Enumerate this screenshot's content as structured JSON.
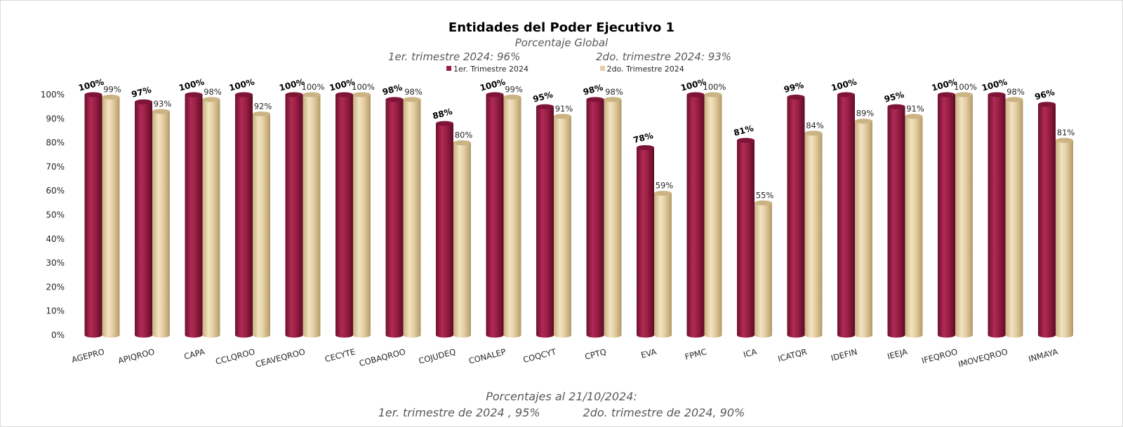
{
  "title": "Entidades del Poder Ejecutivo 1",
  "subtitle": "Porcentaje Global",
  "quarter_summary": {
    "q1": "1er. trimestre 2024: 96%",
    "q2": "2do. trimestre 2024: 93%"
  },
  "footer": {
    "line1": "Porcentajes al 21/10/2024:",
    "line2": "1er. trimestre de 2024 , 95%            2do. trimestre de 2024, 90%"
  },
  "colors": {
    "series1": "#9b1f45",
    "series2": "#e4cfa3"
  },
  "chart_data": {
    "type": "bar",
    "title": "Entidades del Poder Ejecutivo 1",
    "subtitle": "Porcentaje Global",
    "ylim": [
      0,
      100
    ],
    "yticks": [
      "0%",
      "10%",
      "20%",
      "30%",
      "40%",
      "50%",
      "60%",
      "70%",
      "80%",
      "90%",
      "100%"
    ],
    "grid": false,
    "legend_position": "top-center",
    "categories": [
      "AGEPRO",
      "APIQROO",
      "CAPA",
      "CCLQROO",
      "CEAVEQROO",
      "CECYTE",
      "COBAQROO",
      "COJUDEQ",
      "CONALEP",
      "COQCYT",
      "CPTQ",
      "EVA",
      "FPMC",
      "ICA",
      "ICATQR",
      "IDEFIN",
      "IEEJA",
      "IFEQROO",
      "IMOVEQROO",
      "INMAYA"
    ],
    "series": [
      {
        "name": "1er. Trimestre 2024",
        "values": [
          100,
          97,
          100,
          100,
          100,
          100,
          98,
          88,
          100,
          95,
          98,
          78,
          100,
          81,
          99,
          100,
          95,
          100,
          100,
          96
        ],
        "labels": [
          "100%",
          "97%",
          "100%",
          "100%",
          "100%",
          "100%",
          "98%",
          "88%",
          "100%",
          "95%",
          "98%",
          "78%",
          "100%",
          "81%",
          "99%",
          "100%",
          "95%",
          "100%",
          "100%",
          "96%"
        ]
      },
      {
        "name": "2do. Trimestre 2024",
        "values": [
          99,
          93,
          98,
          92,
          100,
          100,
          98,
          80,
          99,
          91,
          98,
          59,
          100,
          55,
          84,
          89,
          91,
          100,
          98,
          81
        ],
        "labels": [
          "99%",
          "93%",
          "98%",
          "92%",
          "100%",
          "100%",
          "98%",
          "80%",
          "99%",
          "91%",
          "98%",
          "59%",
          "100%",
          "55%",
          "84%",
          "89%",
          "91%",
          "100%",
          "98%",
          "81%"
        ]
      }
    ]
  }
}
